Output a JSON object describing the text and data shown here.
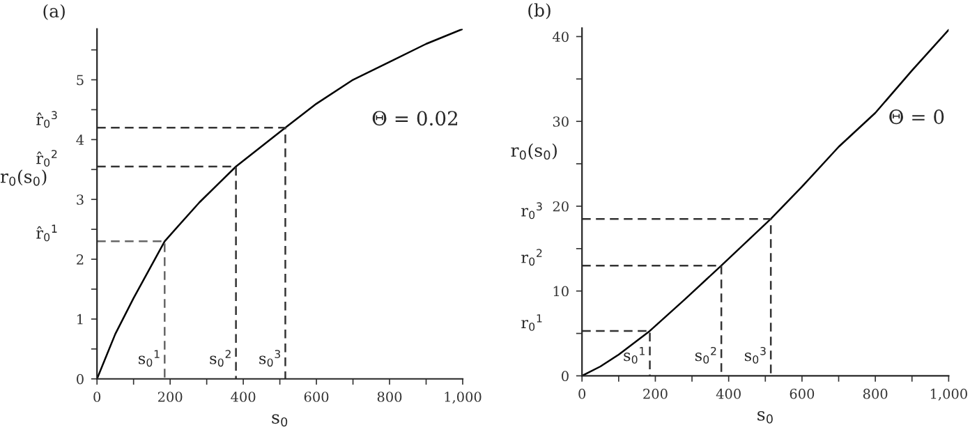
{
  "chart_data": [
    {
      "type": "line",
      "title": "(a)",
      "xlabel": "s$_{0}$",
      "ylabel": "r$_{0}$(s$_{0}$)",
      "xlim": [
        0,
        1000
      ],
      "ylim": [
        0,
        5.85
      ],
      "xticks": [
        0,
        {
          "value": 100,
          "label": null
        },
        200,
        {
          "value": 300,
          "label": null
        },
        400,
        {
          "value": 500,
          "label": null
        },
        600,
        {
          "value": 700,
          "label": null
        },
        800,
        {
          "value": 900,
          "label": null
        },
        {
          "value": 1000,
          "label": "1,000"
        }
      ],
      "yticks": [
        0,
        {
          "value": 0.5,
          "label": null
        },
        1,
        {
          "value": 1.5,
          "label": null
        },
        2,
        {
          "value": 2.5,
          "label": null
        },
        3,
        {
          "value": 3.5,
          "label": null
        },
        4,
        {
          "value": 4.5,
          "label": null
        },
        5,
        {
          "value": 5.5,
          "label": null
        }
      ],
      "grid": false,
      "legend": false,
      "series": [
        {
          "color": "#000000",
          "line_style": "solid",
          "x": [
            0,
            50,
            100,
            185,
            280,
            380,
            515,
            600,
            700,
            800,
            900,
            1000
          ],
          "values": [
            0,
            0.75,
            1.35,
            2.3,
            2.95,
            3.55,
            4.2,
            4.6,
            5.0,
            5.3,
            5.6,
            5.85
          ]
        },
        {
          "color": "#666666",
          "line_style": "dashed",
          "x": [
            0,
            185,
            185
          ],
          "values": [
            2.3,
            2.3,
            0
          ]
        },
        {
          "color": "#333333",
          "line_style": "dashed",
          "x": [
            0,
            380,
            380
          ],
          "values": [
            3.55,
            3.55,
            0
          ]
        },
        {
          "color": "#333333",
          "line_style": "dashed",
          "x": [
            0,
            515,
            515
          ],
          "values": [
            4.2,
            4.2,
            0
          ]
        }
      ],
      "annotations": [
        "Θ = 0.02",
        {
          "text": "r̂$_{0}$$^{1}$",
          "x": 0,
          "y": 2.3
        },
        {
          "text": "r̂$_{0}$$^{2}$",
          "x": 0,
          "y": 3.55
        },
        {
          "text": "r̂$_{0}$$^{3}$",
          "x": 0,
          "y": 4.2
        },
        {
          "text": "s$_{0}$$^{1}$",
          "x": 185,
          "y": 0
        },
        {
          "text": "s$_{0}$$^{2}$",
          "x": 380,
          "y": 0
        },
        {
          "text": "s$_{0}$$^{3}$",
          "x": 515,
          "y": 0
        }
      ]
    },
    {
      "type": "line",
      "title": "(b)",
      "xlabel": "s$_{0}$",
      "ylabel": "r$_{0}$(s$_{0}$)",
      "xlim": [
        0,
        1000
      ],
      "ylim": [
        0,
        41
      ],
      "xticks": [
        0,
        {
          "value": 100,
          "label": null
        },
        200,
        {
          "value": 300,
          "label": null
        },
        400,
        {
          "value": 500,
          "label": null
        },
        600,
        {
          "value": 700,
          "label": null
        },
        800,
        {
          "value": 900,
          "label": null
        },
        {
          "value": 1000,
          "label": "1,000"
        }
      ],
      "yticks": [
        0,
        {
          "value": 5,
          "label": null
        },
        10,
        {
          "value": 15,
          "label": null
        },
        20,
        {
          "value": 25,
          "label": null
        },
        30,
        {
          "value": 35,
          "label": null
        },
        40
      ],
      "grid": false,
      "legend": false,
      "series": [
        {
          "color": "#000000",
          "line_style": "solid",
          "x": [
            0,
            50,
            100,
            185,
            280,
            380,
            515,
            600,
            700,
            800,
            900,
            1000
          ],
          "values": [
            0,
            1.1,
            2.5,
            5.3,
            9,
            13,
            18.5,
            22.3,
            27,
            31,
            36,
            40.8
          ]
        },
        {
          "color": "#333333",
          "line_style": "dashed",
          "x": [
            0,
            185,
            185
          ],
          "values": [
            5.3,
            5.3,
            0
          ]
        },
        {
          "color": "#333333",
          "line_style": "dashed",
          "x": [
            0,
            380,
            380
          ],
          "values": [
            13,
            13,
            0
          ]
        },
        {
          "color": "#333333",
          "line_style": "dashed",
          "x": [
            0,
            515,
            515
          ],
          "values": [
            18.5,
            18.5,
            0
          ]
        }
      ],
      "annotations": [
        "Θ = 0",
        {
          "text": "r$_{0}$$^{1}$",
          "x": 0,
          "y": 5.3
        },
        {
          "text": "r$_{0}$$^{2}$",
          "x": 0,
          "y": 13
        },
        {
          "text": "r$_{0}$$^{3}$",
          "x": 0,
          "y": 18.5
        },
        {
          "text": "s$_{0}$$^{1}$",
          "x": 185,
          "y": 0
        },
        {
          "text": "s$_{0}$$^{2}$",
          "x": 380,
          "y": 0
        },
        {
          "text": "s$_{0}$$^{3}$",
          "x": 515,
          "y": 0
        }
      ]
    }
  ]
}
